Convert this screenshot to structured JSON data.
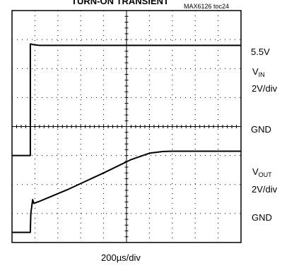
{
  "title": "TURN-ON TRANSIENT",
  "figure_id": "MAX6126 toc24",
  "labels": {
    "vin_level": "5.5V",
    "vin_name_main": "V",
    "vin_name_sub": "IN",
    "vin_scale": "2V/div",
    "gnd_top": "GND",
    "vout_name_main": "V",
    "vout_name_sub": "OUT",
    "vout_scale": "2V/div",
    "gnd_bottom": "GND",
    "time_scale": "200µs/div"
  },
  "chart_data": {
    "type": "line",
    "title": "TURN-ON TRANSIENT",
    "grid": true,
    "x_divisions": 10,
    "y_divisions": 8,
    "x_unit": "div",
    "series": [
      {
        "name": "VIN",
        "x": [
          0,
          0.8,
          0.8,
          0.9,
          1.2,
          10
        ],
        "y": [
          3.0,
          3.0,
          6.85,
          6.83,
          6.8,
          6.8
        ]
      },
      {
        "name": "VOUT",
        "x": [
          0,
          0.8,
          0.82,
          0.9,
          0.95,
          1.2,
          2.5,
          4.0,
          5.2,
          6.0,
          6.6,
          7.0,
          10
        ],
        "y": [
          0.35,
          0.35,
          1.0,
          1.48,
          1.35,
          1.42,
          1.85,
          2.4,
          2.86,
          3.08,
          3.14,
          3.15,
          3.15
        ]
      }
    ]
  }
}
